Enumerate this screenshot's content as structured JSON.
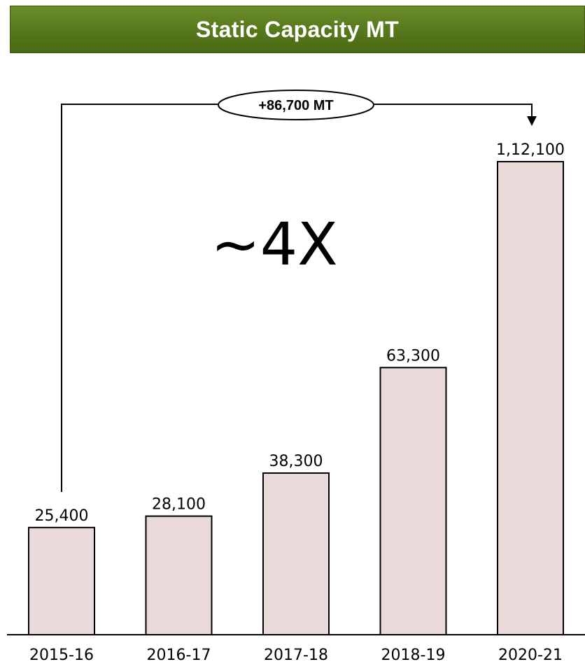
{
  "header": {
    "title": "Static Capacity MT"
  },
  "callout": {
    "text": "+86,700 MT"
  },
  "annotation": {
    "text": "~4X"
  },
  "chart_data": {
    "type": "bar",
    "title": "Static Capacity MT",
    "categories": [
      "2015-16",
      "2016-17",
      "2017-18",
      "2018-19",
      "2020-21"
    ],
    "values": [
      25400,
      28100,
      38300,
      63300,
      112100
    ],
    "value_labels": [
      "25,400",
      "28,100",
      "38,300",
      "63,300",
      "1,12,100"
    ],
    "xlabel": "",
    "ylabel": "",
    "ylim": [
      0,
      112100
    ],
    "grid": false,
    "bar_color": "#eadada",
    "bar_edge_color": "#000000"
  }
}
